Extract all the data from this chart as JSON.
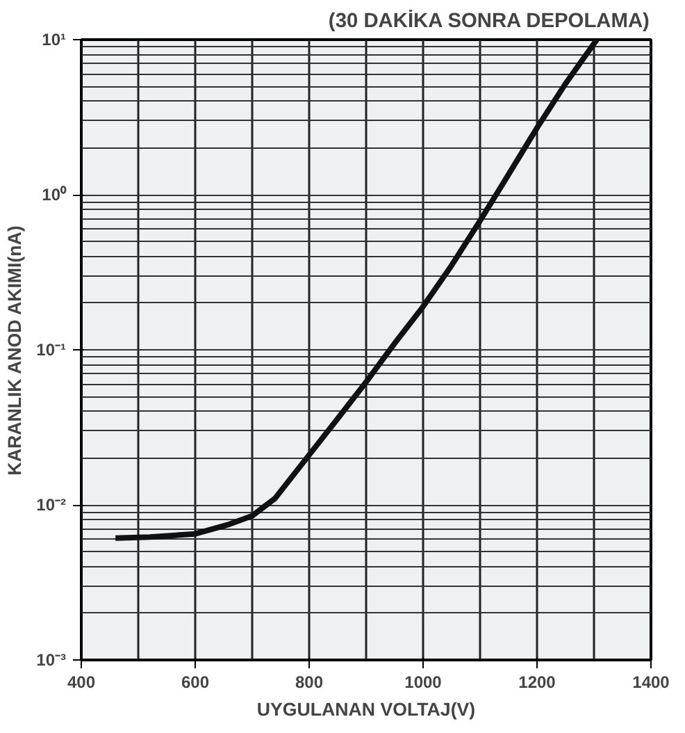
{
  "chart_data": {
    "type": "line",
    "title": "(30 DAKİKA SONRA DEPOLAMA)",
    "xlabel": "UYGULANAN VOLTAJ(V)",
    "ylabel": "KARANLIK ANOD AKIMI(nA)",
    "x": [
      460,
      520,
      600,
      660,
      700,
      740,
      800,
      850,
      900,
      950,
      1000,
      1050,
      1100,
      1150,
      1200,
      1250,
      1305
    ],
    "series": [
      {
        "color": "#111111",
        "values": [
          0.0061,
          0.0062,
          0.0065,
          0.0075,
          0.0085,
          0.011,
          0.021,
          0.036,
          0.062,
          0.11,
          0.19,
          0.35,
          0.68,
          1.35,
          2.7,
          5.2,
          10
        ]
      }
    ],
    "xlim": [
      400,
      1400
    ],
    "ylim": [
      0.001,
      10
    ],
    "xticks": [
      400,
      600,
      800,
      1000,
      1200,
      1400
    ],
    "yticks": [
      {
        "value": 0.001,
        "label": "10⁻³"
      },
      {
        "value": 0.01,
        "label": "10⁻²"
      },
      {
        "value": 0.1,
        "label": "10⁻¹"
      },
      {
        "value": 1,
        "label": "10⁰"
      },
      {
        "value": 10,
        "label": "10¹"
      }
    ],
    "log": "y",
    "grid": true,
    "marker": "none",
    "line_style": "solid"
  }
}
